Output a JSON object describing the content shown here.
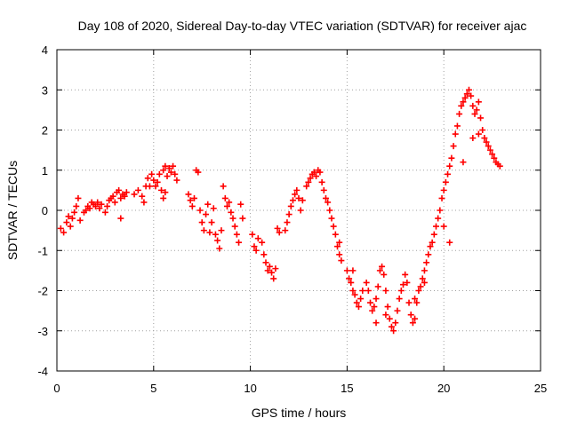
{
  "chart_data": {
    "type": "scatter",
    "title": "Day 108 of 2020, Sidereal Day-to-day VTEC variation (SDTVAR) for receiver ajac",
    "xlabel": "GPS time / hours",
    "ylabel": "SDTVAR / TECUs",
    "xlim": [
      0,
      25
    ],
    "ylim": [
      -4,
      4
    ],
    "x_ticks": [
      0,
      5,
      10,
      15,
      20,
      25
    ],
    "y_ticks": [
      -4,
      -3,
      -2,
      -1,
      0,
      1,
      2,
      3,
      4
    ],
    "grid": true,
    "marker": "+",
    "series": [
      {
        "name": "SDTVAR",
        "color": "#ff0000",
        "points": [
          [
            0.2,
            -0.45
          ],
          [
            0.35,
            -0.55
          ],
          [
            0.5,
            -0.3
          ],
          [
            0.6,
            -0.15
          ],
          [
            0.7,
            -0.4
          ],
          [
            0.8,
            -0.2
          ],
          [
            0.9,
            -0.05
          ],
          [
            1.0,
            0.1
          ],
          [
            1.1,
            0.3
          ],
          [
            1.2,
            -0.25
          ],
          [
            1.4,
            -0.05
          ],
          [
            1.5,
            0.0
          ],
          [
            1.6,
            0.1
          ],
          [
            1.7,
            0.05
          ],
          [
            1.8,
            0.2
          ],
          [
            1.9,
            0.15
          ],
          [
            2.0,
            0.1
          ],
          [
            2.1,
            0.2
          ],
          [
            2.2,
            0.05
          ],
          [
            2.3,
            0.15
          ],
          [
            2.5,
            -0.05
          ],
          [
            2.6,
            0.1
          ],
          [
            2.7,
            0.25
          ],
          [
            2.8,
            0.3
          ],
          [
            2.9,
            0.35
          ],
          [
            3.0,
            0.2
          ],
          [
            3.1,
            0.45
          ],
          [
            3.2,
            0.5
          ],
          [
            3.3,
            0.3
          ],
          [
            3.4,
            0.4
          ],
          [
            3.5,
            0.35
          ],
          [
            3.6,
            0.45
          ],
          [
            3.3,
            -0.2
          ],
          [
            4.0,
            0.4
          ],
          [
            4.2,
            0.5
          ],
          [
            4.4,
            0.35
          ],
          [
            4.5,
            0.2
          ],
          [
            4.6,
            0.6
          ],
          [
            4.7,
            0.8
          ],
          [
            4.8,
            0.6
          ],
          [
            4.9,
            0.9
          ],
          [
            5.0,
            0.75
          ],
          [
            5.1,
            0.6
          ],
          [
            5.2,
            0.7
          ],
          [
            5.3,
            0.9
          ],
          [
            5.4,
            0.5
          ],
          [
            5.5,
            1.0
          ],
          [
            5.6,
            1.1
          ],
          [
            5.7,
            0.85
          ],
          [
            5.8,
            1.05
          ],
          [
            5.9,
            0.95
          ],
          [
            6.0,
            1.1
          ],
          [
            6.1,
            0.9
          ],
          [
            6.2,
            0.75
          ],
          [
            5.5,
            0.3
          ],
          [
            5.6,
            0.45
          ],
          [
            6.8,
            0.4
          ],
          [
            6.9,
            0.25
          ],
          [
            7.0,
            0.1
          ],
          [
            7.1,
            0.3
          ],
          [
            7.2,
            1.0
          ],
          [
            7.3,
            0.95
          ],
          [
            7.4,
            0.0
          ],
          [
            7.5,
            -0.3
          ],
          [
            7.6,
            -0.5
          ],
          [
            7.7,
            -0.1
          ],
          [
            7.8,
            0.15
          ],
          [
            7.9,
            -0.55
          ],
          [
            8.0,
            -0.3
          ],
          [
            8.1,
            0.05
          ],
          [
            8.2,
            -0.6
          ],
          [
            8.3,
            -0.75
          ],
          [
            8.4,
            -0.95
          ],
          [
            8.5,
            -0.5
          ],
          [
            8.6,
            0.6
          ],
          [
            8.7,
            0.3
          ],
          [
            8.8,
            0.1
          ],
          [
            8.9,
            0.2
          ],
          [
            9.0,
            -0.05
          ],
          [
            9.1,
            -0.2
          ],
          [
            9.2,
            -0.4
          ],
          [
            9.3,
            -0.6
          ],
          [
            9.4,
            -0.8
          ],
          [
            9.5,
            0.15
          ],
          [
            9.6,
            -0.2
          ],
          [
            10.1,
            -0.6
          ],
          [
            10.2,
            -0.9
          ],
          [
            10.3,
            -1.0
          ],
          [
            10.4,
            -0.7
          ],
          [
            10.6,
            -0.8
          ],
          [
            10.7,
            -1.1
          ],
          [
            10.8,
            -1.3
          ],
          [
            10.9,
            -1.5
          ],
          [
            11.0,
            -1.4
          ],
          [
            11.1,
            -1.55
          ],
          [
            11.2,
            -1.7
          ],
          [
            11.3,
            -1.45
          ],
          [
            11.4,
            -0.45
          ],
          [
            11.5,
            -0.55
          ],
          [
            11.8,
            -0.5
          ],
          [
            11.9,
            -0.3
          ],
          [
            12.0,
            -0.1
          ],
          [
            12.1,
            0.1
          ],
          [
            12.2,
            0.25
          ],
          [
            12.3,
            0.4
          ],
          [
            12.4,
            0.5
          ],
          [
            12.5,
            0.3
          ],
          [
            12.6,
            0.0
          ],
          [
            12.7,
            0.25
          ],
          [
            12.9,
            0.6
          ],
          [
            13.0,
            0.7
          ],
          [
            13.1,
            0.8
          ],
          [
            13.2,
            0.9
          ],
          [
            13.3,
            0.95
          ],
          [
            13.4,
            0.85
          ],
          [
            13.5,
            1.0
          ],
          [
            13.6,
            0.95
          ],
          [
            13.7,
            0.7
          ],
          [
            13.8,
            0.5
          ],
          [
            13.9,
            0.3
          ],
          [
            14.0,
            0.2
          ],
          [
            14.1,
            0.0
          ],
          [
            14.2,
            -0.2
          ],
          [
            14.3,
            -0.4
          ],
          [
            14.4,
            -0.6
          ],
          [
            14.5,
            -0.9
          ],
          [
            14.6,
            -1.1
          ],
          [
            14.7,
            -1.25
          ],
          [
            14.6,
            -0.8
          ],
          [
            15.0,
            -1.5
          ],
          [
            15.1,
            -1.7
          ],
          [
            15.2,
            -1.8
          ],
          [
            15.3,
            -2.0
          ],
          [
            15.4,
            -2.1
          ],
          [
            15.5,
            -2.3
          ],
          [
            15.6,
            -2.4
          ],
          [
            15.7,
            -2.2
          ],
          [
            15.8,
            -2.0
          ],
          [
            16.0,
            -1.8
          ],
          [
            16.1,
            -2.0
          ],
          [
            16.2,
            -2.3
          ],
          [
            16.3,
            -2.5
          ],
          [
            16.4,
            -2.4
          ],
          [
            16.5,
            -2.2
          ],
          [
            16.6,
            -1.9
          ],
          [
            16.7,
            -1.5
          ],
          [
            16.8,
            -1.4
          ],
          [
            16.9,
            -1.6
          ],
          [
            17.0,
            -2.0
          ],
          [
            17.1,
            -2.4
          ],
          [
            17.2,
            -2.7
          ],
          [
            17.3,
            -2.9
          ],
          [
            17.4,
            -3.0
          ],
          [
            17.5,
            -2.8
          ],
          [
            17.6,
            -2.5
          ],
          [
            17.7,
            -2.2
          ],
          [
            17.8,
            -2.0
          ],
          [
            17.9,
            -1.85
          ],
          [
            18.0,
            -1.6
          ],
          [
            18.1,
            -1.8
          ],
          [
            18.2,
            -2.3
          ],
          [
            18.3,
            -2.6
          ],
          [
            18.4,
            -2.8
          ],
          [
            18.5,
            -2.7
          ],
          [
            18.6,
            -2.3
          ],
          [
            18.7,
            -2.0
          ],
          [
            18.8,
            -1.9
          ],
          [
            18.9,
            -1.7
          ],
          [
            19.0,
            -1.5
          ],
          [
            19.1,
            -1.3
          ],
          [
            19.2,
            -1.1
          ],
          [
            19.3,
            -0.9
          ],
          [
            19.4,
            -0.8
          ],
          [
            19.5,
            -0.6
          ],
          [
            19.6,
            -0.4
          ],
          [
            19.7,
            -0.2
          ],
          [
            19.8,
            0.0
          ],
          [
            19.9,
            0.3
          ],
          [
            20.0,
            0.5
          ],
          [
            20.1,
            0.7
          ],
          [
            20.2,
            0.9
          ],
          [
            20.3,
            1.1
          ],
          [
            20.4,
            1.3
          ],
          [
            20.5,
            1.6
          ],
          [
            20.6,
            1.9
          ],
          [
            20.7,
            2.1
          ],
          [
            20.8,
            2.4
          ],
          [
            20.9,
            2.6
          ],
          [
            21.0,
            2.7
          ],
          [
            21.1,
            2.8
          ],
          [
            21.2,
            2.9
          ],
          [
            21.3,
            3.0
          ],
          [
            21.4,
            2.85
          ],
          [
            21.5,
            2.6
          ],
          [
            21.6,
            2.4
          ],
          [
            21.7,
            2.5
          ],
          [
            21.8,
            2.7
          ],
          [
            21.9,
            2.3
          ],
          [
            22.0,
            2.0
          ],
          [
            22.1,
            1.8
          ],
          [
            22.2,
            1.7
          ],
          [
            22.3,
            1.6
          ],
          [
            22.4,
            1.5
          ],
          [
            22.5,
            1.4
          ],
          [
            22.6,
            1.3
          ],
          [
            22.7,
            1.2
          ],
          [
            22.8,
            1.15
          ],
          [
            22.9,
            1.1
          ],
          [
            21.0,
            1.2
          ],
          [
            21.5,
            1.8
          ],
          [
            21.8,
            1.9
          ],
          [
            16.5,
            -2.8
          ],
          [
            17.0,
            -2.6
          ],
          [
            18.5,
            -2.2
          ],
          [
            15.3,
            -1.5
          ],
          [
            19.0,
            -1.8
          ],
          [
            20.0,
            -0.4
          ],
          [
            20.3,
            -0.8
          ]
        ]
      }
    ]
  }
}
